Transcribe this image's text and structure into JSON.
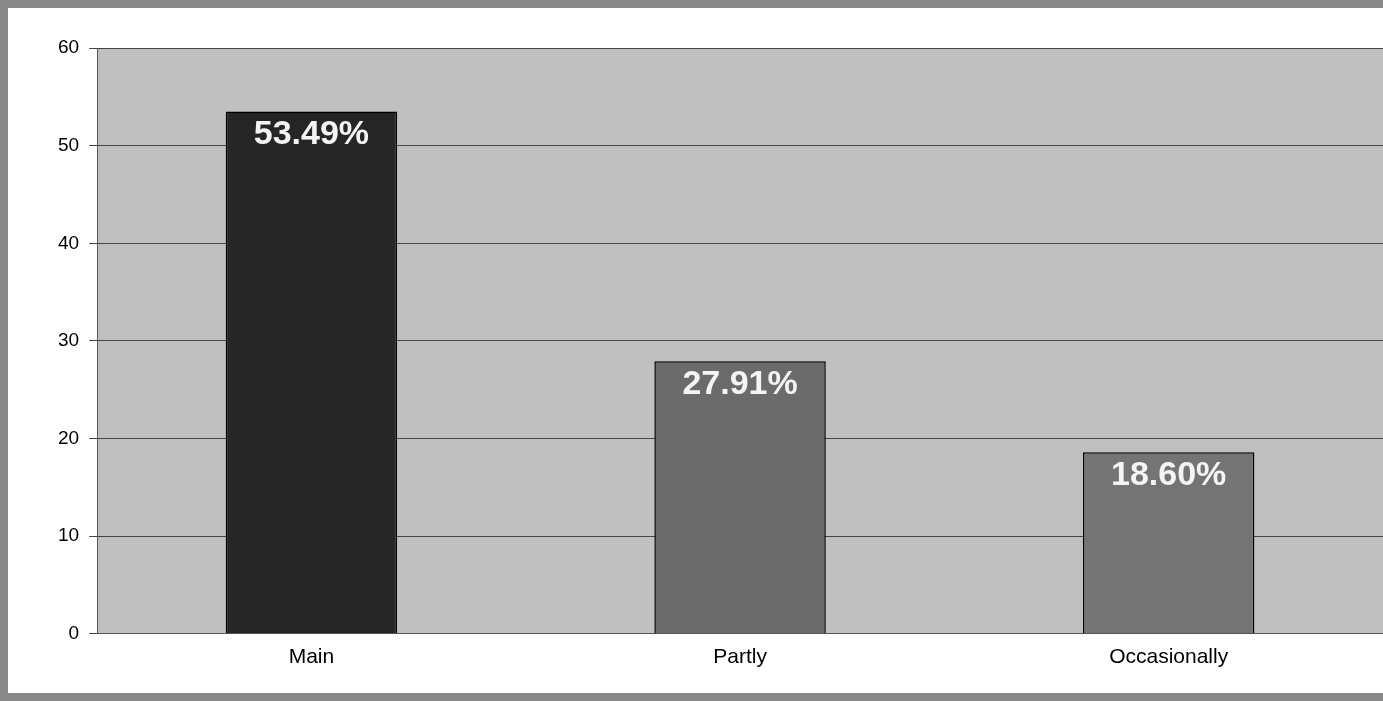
{
  "chart_data": {
    "type": "bar",
    "categories": [
      "Main",
      "Partly",
      "Occasionally"
    ],
    "values": [
      53.49,
      27.91,
      18.6
    ],
    "colors": [
      "#262626",
      "#6b6b6b",
      "#747474"
    ],
    "value_labels": [
      "53.49%",
      "27.91%",
      "18.60%"
    ],
    "ylim": [
      0,
      60
    ],
    "yticks": [
      0,
      10,
      20,
      30,
      40,
      50,
      60
    ],
    "grid": "y",
    "legend": false
  }
}
